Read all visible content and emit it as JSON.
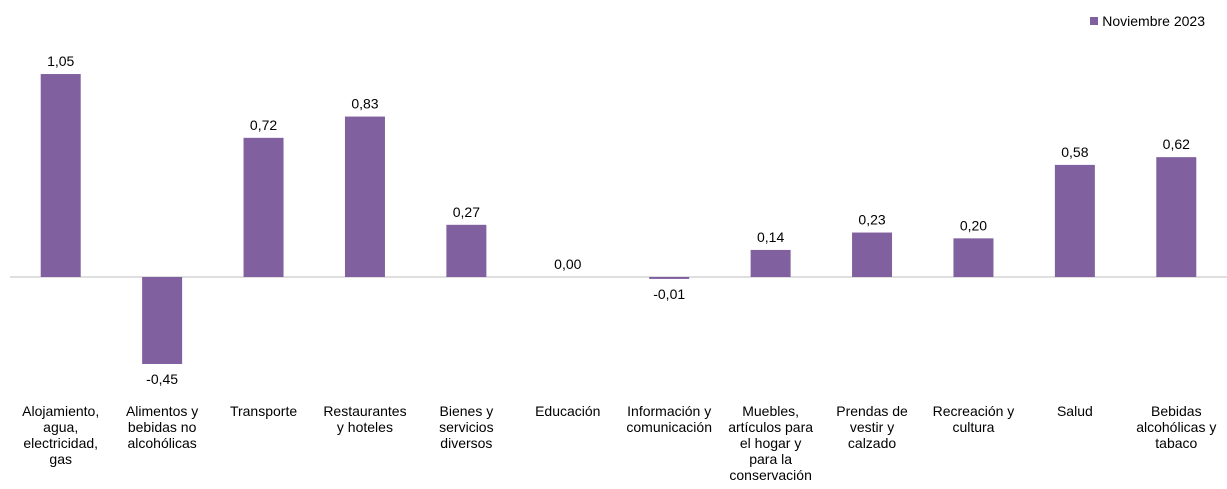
{
  "legend": {
    "label": "Noviembre 2023"
  },
  "colors": {
    "bar": "#80609f",
    "axis": "#bfbfbf"
  },
  "chart_data": {
    "type": "bar",
    "categories": [
      [
        "Alojamiento,",
        "agua,",
        "electricidad,",
        "gas"
      ],
      [
        "Alimentos y",
        "bebidas no",
        "alcohólicas"
      ],
      [
        "Transporte"
      ],
      [
        "Restaurantes",
        "y hoteles"
      ],
      [
        "Bienes y",
        "servicios",
        "diversos"
      ],
      [
        "Educación"
      ],
      [
        "Información y",
        "comunicación"
      ],
      [
        "Muebles,",
        "artículos para",
        "el hogar y",
        "para la",
        "conservación"
      ],
      [
        "Prendas de",
        "vestir y",
        "calzado"
      ],
      [
        "Recreación y",
        "cultura"
      ],
      [
        "Salud"
      ],
      [
        "Bebidas",
        "alcohólicas y",
        "tabaco"
      ]
    ],
    "series": [
      {
        "name": "Noviembre 2023",
        "values": [
          1.05,
          -0.45,
          0.72,
          0.83,
          0.27,
          0.0,
          -0.01,
          0.14,
          0.23,
          0.2,
          0.58,
          0.62
        ],
        "labels": [
          "1,05",
          "-0,45",
          "0,72",
          "0,83",
          "0,27",
          "0,00",
          "-0,01",
          "0,14",
          "0,23",
          "0,20",
          "0,58",
          "0,62"
        ]
      }
    ],
    "legend_position": "top-right",
    "grid": false
  }
}
